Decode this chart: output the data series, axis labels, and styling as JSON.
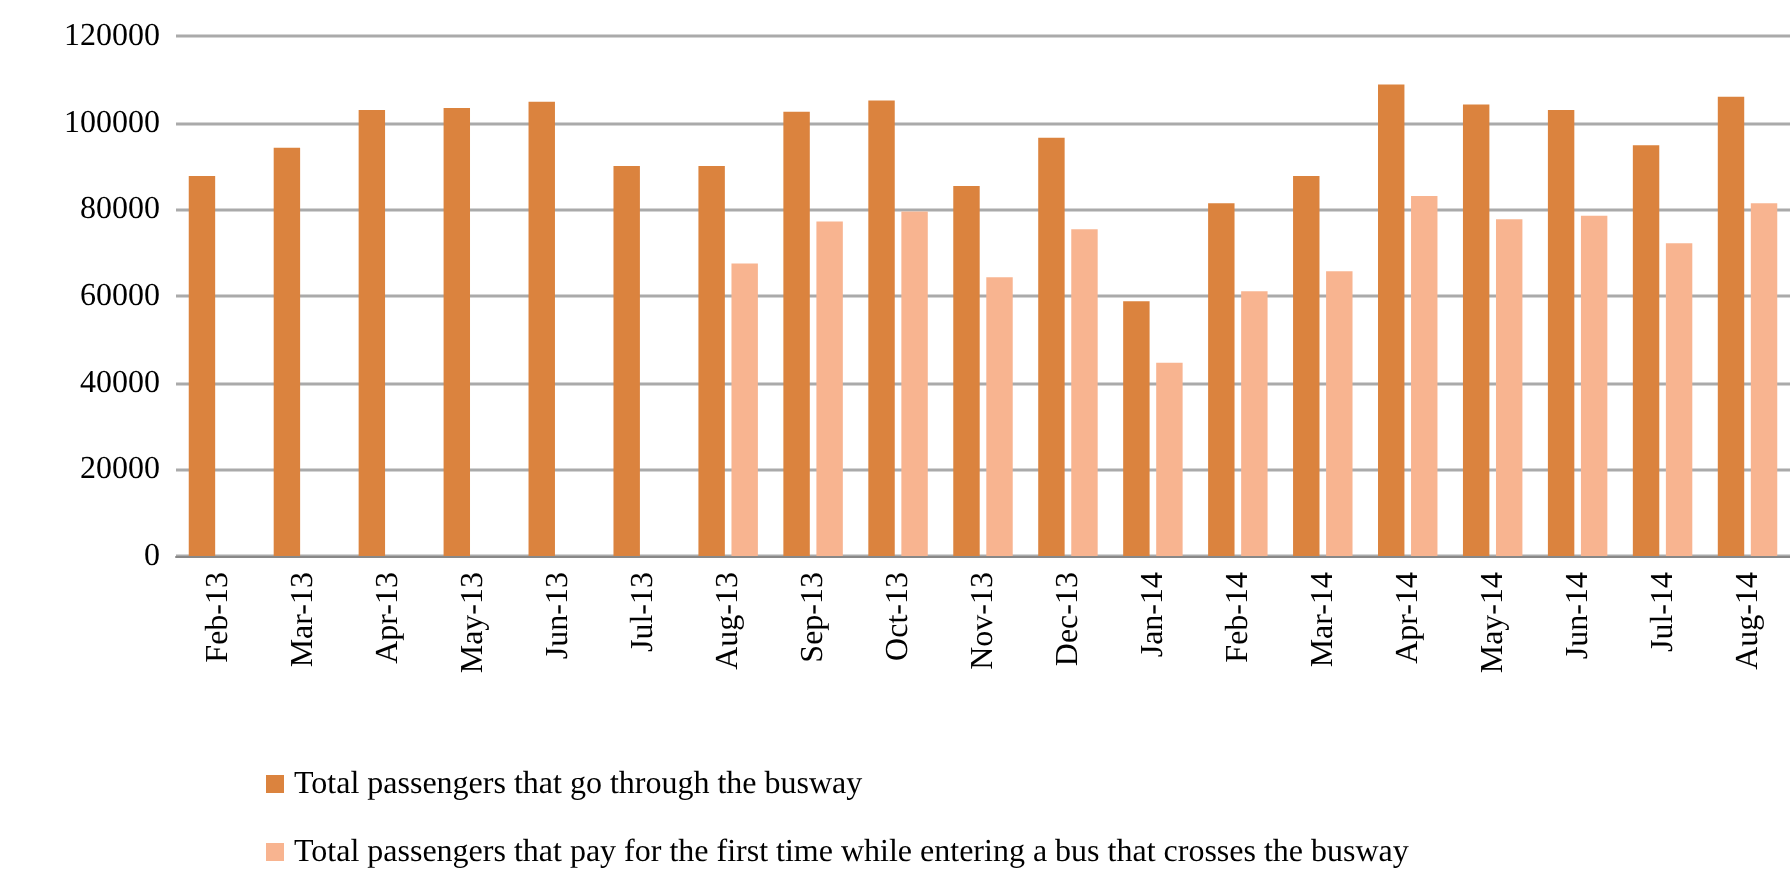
{
  "chart_data": {
    "type": "bar",
    "categories": [
      "Feb-13",
      "Mar-13",
      "Apr-13",
      "May-13",
      "Jun-13",
      "Jul-13",
      "Aug-13",
      "Sep-13",
      "Oct-13",
      "Nov-13",
      "Dec-13",
      "Jan-14",
      "Feb-14",
      "Mar-14",
      "Apr-14",
      "May-14",
      "Jun-14",
      "Jul-14",
      "Aug-14"
    ],
    "series": [
      {
        "name": "Total passengers that go through the busway",
        "color": "#db833e",
        "values": [
          87700,
          94200,
          102900,
          103400,
          104800,
          90000,
          90000,
          102500,
          105100,
          85400,
          96500,
          58800,
          81400,
          87700,
          108800,
          104200,
          102900,
          94800,
          106000
        ]
      },
      {
        "name": "Total passengers that pay for the first time while entering a bus that crosses the busway",
        "color": "#f8b490",
        "values": [
          null,
          null,
          null,
          null,
          null,
          null,
          67500,
          77200,
          79500,
          64300,
          75400,
          44600,
          61100,
          65700,
          83100,
          77700,
          78500,
          72200,
          81400
        ]
      }
    ],
    "ylim": [
      0,
      120000
    ],
    "yticks": [
      0,
      20000,
      40000,
      60000,
      80000,
      100000,
      120000
    ],
    "grid": "y",
    "legend": "bottom"
  }
}
